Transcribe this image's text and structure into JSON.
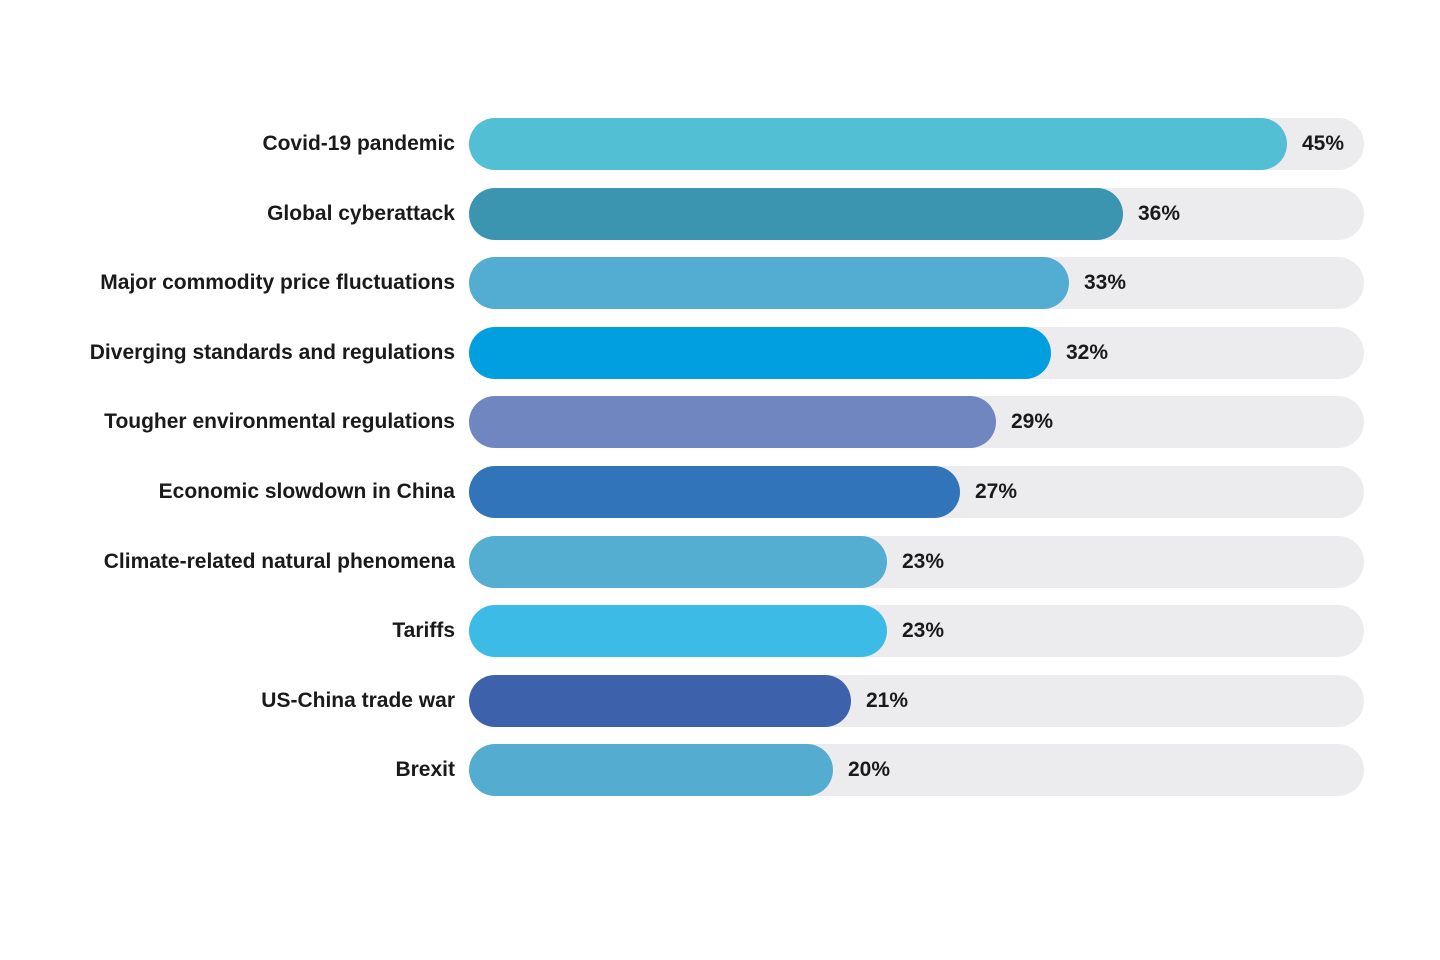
{
  "chart_data": {
    "type": "bar",
    "orientation": "horizontal",
    "categories": [
      "Covid-19 pandemic",
      "Global cyberattack",
      "Major commodity price fluctuations",
      "Diverging standards and regulations",
      "Tougher environmental regulations",
      "Economic slowdown in China",
      "Climate-related natural phenomena",
      "Tariffs",
      "US-China trade war",
      "Brexit"
    ],
    "values": [
      45,
      36,
      33,
      32,
      29,
      27,
      23,
      23,
      21,
      20
    ],
    "value_labels": [
      "45%",
      "36%",
      "33%",
      "32%",
      "29%",
      "27%",
      "23%",
      "23%",
      "21%",
      "20%"
    ],
    "colors": [
      "#52bfd4",
      "#3b95b0",
      "#53acd1",
      "#019fdf",
      "#6f86c1",
      "#3174ba",
      "#53aed1",
      "#3bbbe6",
      "#3d62ab",
      "#54add1"
    ],
    "track_color": "#ececef",
    "xlim": [
      0,
      45
    ],
    "title": "",
    "xlabel": "",
    "ylabel": "",
    "grid": false,
    "legend": "none"
  }
}
